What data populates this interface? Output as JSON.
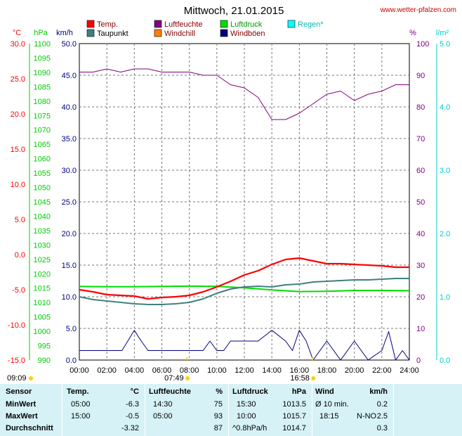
{
  "page": {
    "title": "Mittwoch, 21.01.2015",
    "source": "www.wetter-pfalzen.com"
  },
  "axes": {
    "left_units": {
      "temp": "°C",
      "pressure": "hPa",
      "speed": "km/h"
    },
    "right_units": {
      "humidity": "%",
      "rain": "l/m²"
    },
    "temp_ticks": [
      "30.0",
      "25.0",
      "20.0",
      "15.0",
      "10.0",
      "5.0",
      "0.0",
      "-5.0",
      "-10.0",
      "-15.0"
    ],
    "pressure_ticks": [
      "1100",
      "1095",
      "1090",
      "1085",
      "1080",
      "1075",
      "1070",
      "1065",
      "1060",
      "1055",
      "1050",
      "1045",
      "1040",
      "1035",
      "1030",
      "1025",
      "1020",
      "1015",
      "1010",
      "1005",
      "1000",
      "995",
      "990"
    ],
    "speed_ticks": [
      "50.0",
      "45.0",
      "40.0",
      "35.0",
      "30.0",
      "25.0",
      "20.0",
      "15.0",
      "10.0",
      "5.0",
      "0.0"
    ],
    "humidity_ticks": [
      "100",
      "90",
      "80",
      "70",
      "60",
      "50",
      "40",
      "30",
      "20",
      "10",
      "0"
    ],
    "rain_ticks": [
      "5.0",
      "4.0",
      "3.0",
      "2.0",
      "1.0",
      "0.0"
    ],
    "x_ticks": [
      "00:00",
      "02:00",
      "04:00",
      "06:00",
      "08:00",
      "10:00",
      "12:00",
      "14:00",
      "16:00",
      "18:00",
      "20:00",
      "22:00",
      "24:00"
    ],
    "sun_markers": [
      {
        "label": "09:09",
        "hour": 0,
        "row": "lower"
      },
      {
        "label": "07:49",
        "hour": 7.82,
        "row": "lower"
      },
      {
        "label": "16:58",
        "hour": 16.97,
        "row": "lower"
      }
    ]
  },
  "legend": [
    {
      "label": "Temp.",
      "color": "#ff0000"
    },
    {
      "label": "Luftfeuchte",
      "color": "#800080"
    },
    {
      "label": "Luftdruck",
      "color": "#00dd00"
    },
    {
      "label": "Regen*",
      "color": "#00ffff"
    },
    {
      "label": "Taupunkt",
      "color": "#408080"
    },
    {
      "label": "Windchill",
      "color": "#ff8000"
    },
    {
      "label": "Windböen",
      "color": "#000080"
    }
  ],
  "chart_data": {
    "type": "line",
    "x_range": [
      0,
      24
    ],
    "series": [
      {
        "name": "Temp.",
        "axis": "°C",
        "color": "#ff0000",
        "x": [
          0,
          1,
          2,
          3,
          4,
          5,
          6,
          7,
          8,
          9,
          10,
          11,
          12,
          13,
          14,
          15,
          16,
          17,
          18,
          19,
          20,
          21,
          22,
          23,
          24
        ],
        "values": [
          -5.0,
          -5.3,
          -5.7,
          -5.8,
          -5.9,
          -6.3,
          -6.1,
          -6.0,
          -5.8,
          -5.3,
          -4.6,
          -3.8,
          -2.9,
          -2.3,
          -1.4,
          -0.7,
          -0.5,
          -0.9,
          -1.3,
          -1.3,
          -1.4,
          -1.5,
          -1.6,
          -1.8,
          -1.8
        ]
      },
      {
        "name": "Taupunkt",
        "axis": "°C",
        "color": "#408080",
        "x": [
          0,
          1,
          2,
          3,
          4,
          5,
          6,
          7,
          8,
          9,
          10,
          11,
          12,
          13,
          14,
          15,
          16,
          17,
          18,
          19,
          20,
          21,
          22,
          23,
          24
        ],
        "values": [
          -6.0,
          -6.4,
          -6.6,
          -6.8,
          -7.0,
          -7.1,
          -7.1,
          -7.0,
          -6.8,
          -6.3,
          -5.5,
          -4.9,
          -4.6,
          -4.5,
          -4.6,
          -4.3,
          -4.2,
          -3.9,
          -3.8,
          -3.7,
          -3.6,
          -3.6,
          -3.5,
          -3.4,
          -3.4
        ]
      },
      {
        "name": "Luftdruck",
        "axis": "hPa",
        "color": "#00dd00",
        "x": [
          0,
          2,
          4,
          6,
          8,
          10,
          12,
          14,
          16,
          18,
          20,
          22,
          24
        ],
        "values": [
          1015.6,
          1015.5,
          1015.5,
          1015.6,
          1015.7,
          1015.6,
          1015.1,
          1014.4,
          1013.8,
          1013.9,
          1014.2,
          1014.2,
          1014.1
        ]
      },
      {
        "name": "Luftfeuchte",
        "axis": "%",
        "color": "#800080",
        "x": [
          0,
          1,
          2,
          3,
          4,
          5,
          6,
          7,
          8,
          9,
          10,
          11,
          12,
          13,
          14,
          15,
          16,
          17,
          18,
          19,
          20,
          21,
          22,
          23,
          24
        ],
        "values": [
          91,
          91,
          92,
          91,
          92,
          92,
          91,
          91,
          91,
          90,
          90,
          87,
          86,
          83,
          76,
          76,
          78,
          81,
          84,
          85,
          82,
          84,
          85,
          87,
          87
        ]
      },
      {
        "name": "Windböen",
        "axis": "km/h",
        "color": "#000080",
        "x": [
          0,
          1,
          2,
          3,
          3.1,
          4,
          4.5,
          5,
          6,
          7,
          8,
          9,
          9.5,
          10,
          10.5,
          11,
          11.5,
          12,
          13,
          14,
          15,
          15.5,
          16,
          16.5,
          17,
          18,
          19,
          20,
          21,
          22,
          22.5,
          23,
          23.5,
          24
        ],
        "values": [
          1.5,
          1.5,
          1.5,
          1.5,
          1.5,
          4.7,
          3.0,
          1.5,
          1.5,
          1.5,
          1.5,
          1.5,
          3.0,
          1.5,
          1.5,
          3.0,
          3.0,
          3.0,
          3.0,
          4.7,
          3.0,
          1.5,
          4.7,
          3.0,
          0.0,
          3.0,
          0.0,
          3.0,
          0.0,
          1.5,
          4.5,
          0.0,
          1.5,
          0.0
        ]
      }
    ]
  },
  "stats": {
    "headers": {
      "sensor": "Sensor",
      "temp": "Temp.",
      "temp_unit": "°C",
      "hum": "Luftfeuchte",
      "hum_unit": "%",
      "press": "Luftdruck",
      "press_unit": "hPa",
      "wind": "Wind",
      "wind_unit": "km/h"
    },
    "rows": [
      {
        "label": "MinWert",
        "temp_time": "05:00",
        "temp_val": "-6.3",
        "hum_time": "14:30",
        "hum_val": "75",
        "press_time": "15:30",
        "press_val": "1013.5",
        "wind_time": "Ø 10 min.",
        "wind_dir": "",
        "wind_val": "0.2"
      },
      {
        "label": "MaxWert",
        "temp_time": "15:00",
        "temp_val": "-0.5",
        "hum_time": "05:00",
        "hum_val": "93",
        "press_time": "10:00",
        "press_val": "1015.7",
        "wind_time": "18:15",
        "wind_dir": "N-NO",
        "wind_val": "2.5"
      },
      {
        "label": "Durchschnitt",
        "temp_time": "",
        "temp_val": "-3.32",
        "hum_time": "",
        "hum_val": "87",
        "press_time": "^0.8hPa/h",
        "press_val": "1014.7",
        "wind_time": "",
        "wind_dir": "",
        "wind_val": "0.3"
      }
    ]
  }
}
